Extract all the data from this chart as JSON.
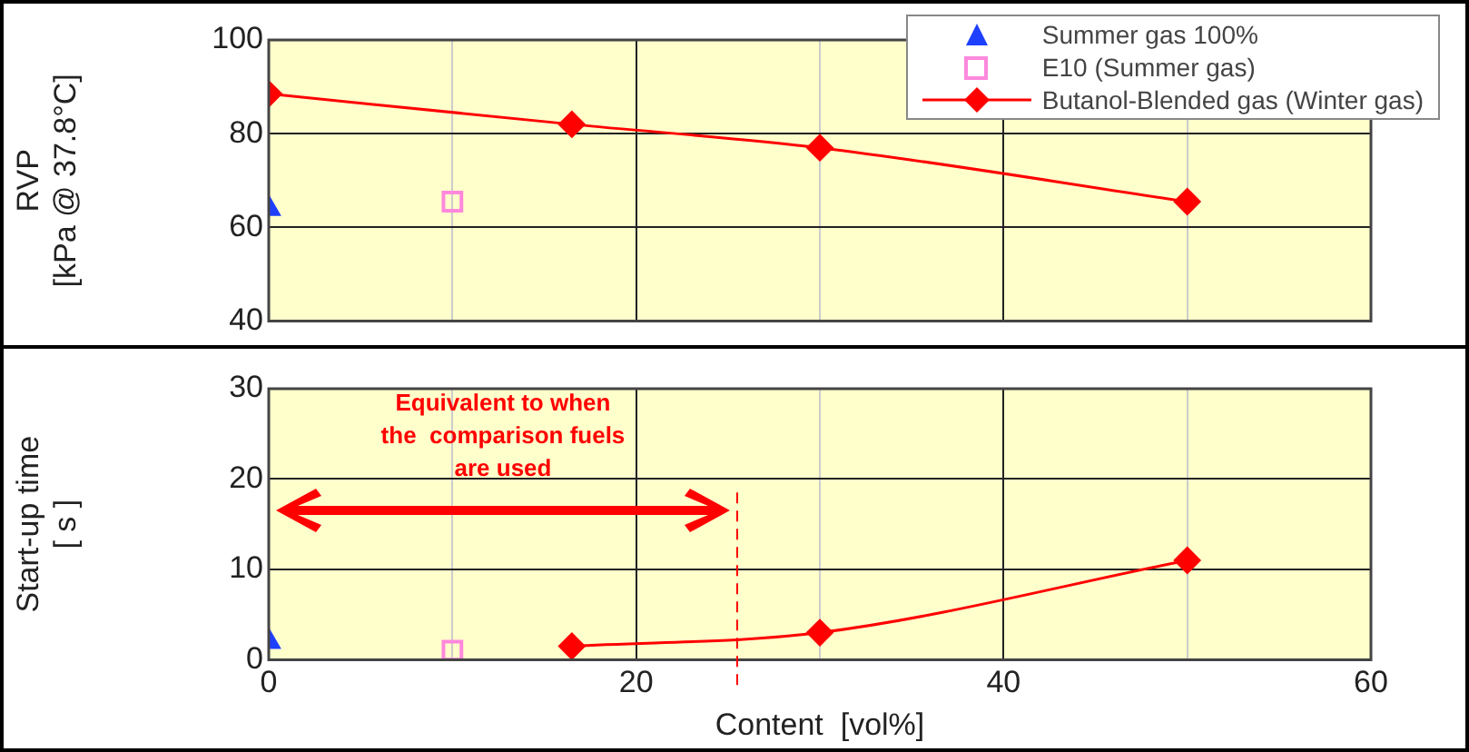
{
  "chart_data": [
    {
      "type": "scatter",
      "ylabel": "RVP\n[kPa @ 37.8°C]",
      "xlim": [
        0,
        60
      ],
      "xticks": [
        0,
        {
          "value": 10,
          "label": null
        },
        20,
        {
          "value": 30,
          "label": null
        },
        40,
        {
          "value": 50,
          "label": null
        },
        60
      ],
      "ylim": [
        40,
        100
      ],
      "yticks": [
        40,
        60,
        80,
        100
      ],
      "tick_labels": "y",
      "grid": true,
      "legend": "top right",
      "series": [
        {
          "name": "Summer gas 100%",
          "color": "#1f3fff",
          "marker": "triangle",
          "x": [
            0
          ],
          "values": [
            64
          ]
        },
        {
          "name": "E10 (Summer gas)",
          "color": "#ff88dd",
          "marker": "square",
          "x": [
            10
          ],
          "values": [
            65.5
          ]
        },
        {
          "name": "Butanol-Blended gas (Winter gas)",
          "type": "line",
          "color": "#ff0000",
          "marker": "diamond",
          "x": [
            0,
            16.5,
            30,
            50
          ],
          "values": [
            88.5,
            82,
            77,
            65.5
          ]
        }
      ]
    },
    {
      "type": "scatter",
      "xlabel": "Content  [vol%]",
      "ylabel": "Start-up time\n[ s ]",
      "xlim": [
        0,
        60
      ],
      "xticks": [
        0,
        {
          "value": 10,
          "label": null
        },
        20,
        {
          "value": 30,
          "label": null
        },
        40,
        {
          "value": 50,
          "label": null
        },
        60
      ],
      "ylim": [
        0,
        30
      ],
      "yticks": [
        0,
        10,
        20,
        30
      ],
      "grid": true,
      "annotations": [
        "Equivalent to when\nthe  comparison fuels\nare used"
      ],
      "ref_lines": [
        {
          "axis": "x",
          "value": 25.5,
          "color": "#ff0000",
          "line_style": "dashed"
        }
      ],
      "series": [
        {
          "color": "#1f3fff",
          "marker": "triangle",
          "x": [
            0
          ],
          "values": [
            2
          ]
        },
        {
          "color": "#ff88dd",
          "marker": "square",
          "x": [
            10
          ],
          "values": [
            1
          ]
        },
        {
          "type": "line",
          "color": "#ff0000",
          "marker": "diamond",
          "x": [
            16.5,
            30,
            50
          ],
          "values": [
            1.5,
            3,
            11
          ]
        }
      ]
    }
  ]
}
